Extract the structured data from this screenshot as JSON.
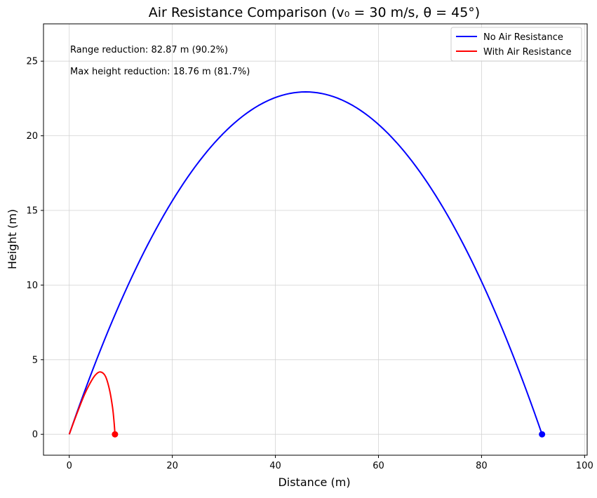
{
  "chart_data": {
    "type": "line",
    "title": "Air Resistance Comparison (v₀ = 30 m/s, θ = 45°)",
    "xlabel": "Distance (m)",
    "ylabel": "Height (m)",
    "xlim": [
      -5,
      100.5
    ],
    "ylim": [
      -1.4,
      27.5
    ],
    "xticks": [
      0,
      20,
      40,
      60,
      80,
      100
    ],
    "yticks": [
      0,
      5,
      10,
      15,
      20,
      25
    ],
    "grid": true,
    "legend_position": "top-right",
    "annotations": [
      "Range reduction: 82.87 m (90.2%)",
      "Max height reduction: 18.76 m (81.7%)"
    ],
    "series": [
      {
        "name": "No Air Resistance",
        "color": "#0000ff",
        "x": [
          0,
          5,
          10,
          15,
          20,
          25,
          30,
          35,
          40,
          45.87,
          50,
          55,
          60,
          65,
          70,
          75,
          80,
          85,
          91.74
        ],
        "y": [
          0,
          4.73,
          8.91,
          12.55,
          15.64,
          18.19,
          20.19,
          21.65,
          22.56,
          22.94,
          22.75,
          22.05,
          20.81,
          19.02,
          16.69,
          13.82,
          10.4,
          6.43,
          0
        ],
        "end_marker": {
          "x": 91.74,
          "y": 0
        }
      },
      {
        "name": "With Air Resistance",
        "color": "#ff0000",
        "x": [
          0,
          1,
          2,
          3,
          4,
          5,
          6,
          7,
          7.8,
          8.4,
          8.7,
          8.87
        ],
        "y": [
          0,
          0.95,
          1.85,
          2.7,
          3.4,
          3.95,
          4.18,
          3.9,
          3.0,
          1.8,
          0.8,
          0
        ],
        "end_marker": {
          "x": 8.87,
          "y": 0
        }
      }
    ]
  }
}
